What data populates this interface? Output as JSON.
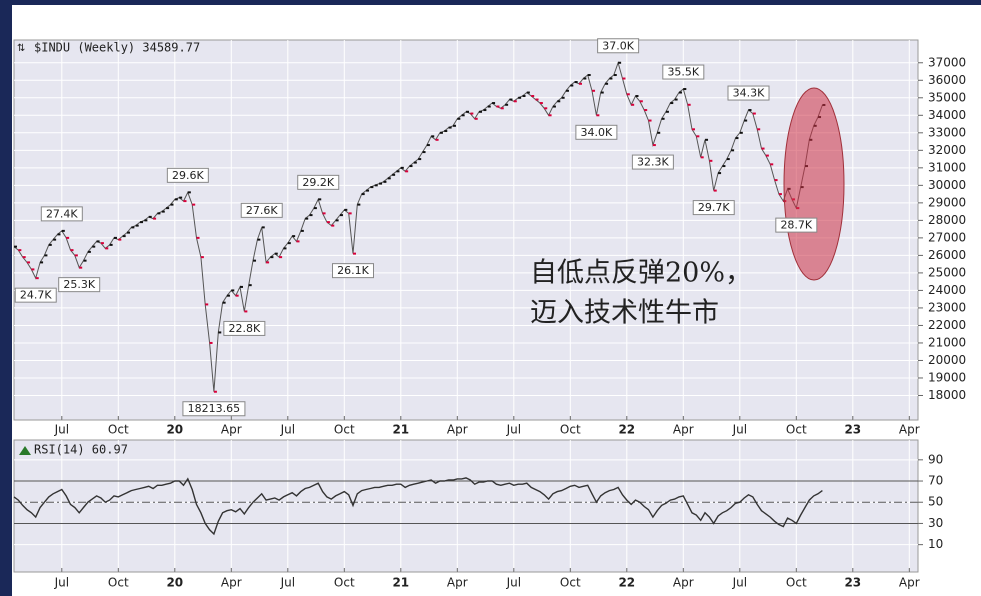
{
  "chart_data": [
    {
      "type": "line",
      "title": "$INDU (Weekly) 34589.77",
      "values": [
        26500,
        26300,
        25900,
        25600,
        25200,
        24700,
        25600,
        26000,
        26600,
        26900,
        27200,
        27400,
        27000,
        26300,
        26000,
        25300,
        25700,
        26200,
        26500,
        26800,
        26700,
        26400,
        26600,
        27000,
        26900,
        27100,
        27300,
        27600,
        27700,
        27900,
        28000,
        28200,
        28100,
        28400,
        28500,
        28700,
        28900,
        29200,
        29300,
        29100,
        29600,
        28900,
        27000,
        25900,
        23200,
        21000,
        18213.65,
        21600,
        23300,
        23700,
        24000,
        23700,
        24200,
        22800,
        24300,
        25700,
        26900,
        27600,
        25600,
        25900,
        26100,
        25900,
        26400,
        26700,
        27100,
        26800,
        27400,
        28100,
        28300,
        28700,
        29200,
        28400,
        27900,
        27700,
        28000,
        28300,
        28600,
        28400,
        26100,
        28900,
        29500,
        29700,
        29900,
        30000,
        30100,
        30200,
        30400,
        30600,
        30800,
        31000,
        30800,
        31100,
        31300,
        31500,
        31900,
        32300,
        32800,
        32600,
        33000,
        33100,
        33300,
        33400,
        33800,
        34000,
        34200,
        34100,
        33800,
        34200,
        34300,
        34500,
        34700,
        34500,
        34400,
        34600,
        34900,
        34800,
        35000,
        35100,
        35300,
        35100,
        34900,
        34700,
        34400,
        34000,
        34500,
        34800,
        35000,
        35400,
        35700,
        35900,
        35800,
        36100,
        36300,
        35400,
        34000,
        35300,
        35800,
        36100,
        36300,
        37000,
        36100,
        35200,
        34600,
        35100,
        34800,
        34300,
        33700,
        32300,
        33000,
        33800,
        34200,
        34700,
        34900,
        35300,
        35500,
        34600,
        33200,
        32800,
        31600,
        32600,
        31400,
        29700,
        30700,
        31100,
        31500,
        32000,
        32700,
        33000,
        33700,
        34300,
        34100,
        33200,
        32100,
        31700,
        31200,
        30300,
        29500,
        29100,
        29800,
        29200,
        28700,
        29900,
        31100,
        32600,
        33400,
        33900,
        34589.77
      ],
      "up_color": "#111111",
      "down_color": "#d8003a",
      "ylim": [
        16600,
        38300
      ],
      "yticks": [
        18000,
        19000,
        20000,
        21000,
        22000,
        23000,
        24000,
        25000,
        26000,
        27000,
        28000,
        29000,
        30000,
        31000,
        32000,
        33000,
        34000,
        35000,
        36000,
        37000
      ],
      "xlim": [
        0,
        208
      ],
      "xticks": [
        {
          "value": 11,
          "label": "Jul"
        },
        {
          "value": 24,
          "label": "Oct"
        },
        {
          "value": 37,
          "label": "20"
        },
        {
          "value": 50,
          "label": "Apr"
        },
        {
          "value": 63,
          "label": "Jul"
        },
        {
          "value": 76,
          "label": "Oct"
        },
        {
          "value": 89,
          "label": "21"
        },
        {
          "value": 102,
          "label": "Apr"
        },
        {
          "value": 115,
          "label": "Jul"
        },
        {
          "value": 128,
          "label": "Oct"
        },
        {
          "value": 141,
          "label": "22"
        },
        {
          "value": 154,
          "label": "Apr"
        },
        {
          "value": 167,
          "label": "Jul"
        },
        {
          "value": 180,
          "label": "Oct"
        },
        {
          "value": 193,
          "label": "23"
        },
        {
          "value": 206,
          "label": "Apr"
        }
      ],
      "grid": true,
      "point_labels": [
        {
          "x": 5,
          "value": 24700,
          "label": "24.7K"
        },
        {
          "x": 11,
          "value": 27400,
          "label": "27.4K"
        },
        {
          "x": 15,
          "value": 25300,
          "label": "25.3K"
        },
        {
          "x": 40,
          "value": 29600,
          "label": "29.6K"
        },
        {
          "x": 46,
          "value": 18213.65,
          "label": "18213.65"
        },
        {
          "x": 53,
          "value": 22800,
          "label": "22.8K"
        },
        {
          "x": 57,
          "value": 27600,
          "label": "27.6K"
        },
        {
          "x": 70,
          "value": 29200,
          "label": "29.2K"
        },
        {
          "x": 78,
          "value": 26100,
          "label": "26.1K"
        },
        {
          "x": 134,
          "value": 34000,
          "label": "34.0K"
        },
        {
          "x": 139,
          "value": 37000,
          "label": "37.0K"
        },
        {
          "x": 147,
          "value": 32300,
          "label": "32.3K"
        },
        {
          "x": 154,
          "value": 35500,
          "label": "35.5K"
        },
        {
          "x": 161,
          "value": 29700,
          "label": "29.7K"
        },
        {
          "x": 169,
          "value": 34300,
          "label": "34.3K"
        },
        {
          "x": 180,
          "value": 28700,
          "label": "28.7K"
        }
      ],
      "annotation": [
        "自低点反弹20%，",
        "迈入技术性牛市"
      ],
      "annotation_color": "#e01020"
    },
    {
      "type": "line",
      "title": "RSI(14) 60.97",
      "values": [
        55,
        52,
        47,
        43,
        40,
        36,
        45,
        50,
        55,
        58,
        60,
        62,
        56,
        48,
        45,
        40,
        45,
        50,
        53,
        56,
        54,
        50,
        52,
        56,
        55,
        57,
        59,
        61,
        62,
        63,
        64,
        65,
        63,
        66,
        66,
        67,
        68,
        70,
        70,
        66,
        72,
        62,
        48,
        40,
        30,
        24,
        20,
        32,
        40,
        42,
        43,
        41,
        44,
        39,
        45,
        50,
        54,
        58,
        52,
        53,
        54,
        52,
        55,
        57,
        59,
        56,
        60,
        63,
        64,
        66,
        68,
        60,
        55,
        53,
        56,
        58,
        60,
        57,
        47,
        58,
        61,
        62,
        63,
        64,
        64,
        65,
        66,
        66,
        67,
        67,
        64,
        66,
        67,
        68,
        69,
        70,
        71,
        68,
        70,
        70,
        71,
        71,
        72,
        72,
        73,
        71,
        67,
        69,
        69,
        70,
        70,
        67,
        66,
        67,
        68,
        66,
        67,
        67,
        68,
        64,
        62,
        60,
        57,
        53,
        58,
        60,
        61,
        63,
        65,
        66,
        64,
        65,
        66,
        58,
        50,
        56,
        59,
        61,
        62,
        64,
        57,
        52,
        48,
        52,
        50,
        46,
        43,
        36,
        42,
        47,
        49,
        52,
        53,
        55,
        56,
        48,
        40,
        38,
        33,
        40,
        36,
        30,
        37,
        40,
        42,
        45,
        49,
        50,
        54,
        57,
        55,
        48,
        42,
        39,
        36,
        32,
        29,
        27,
        35,
        33,
        30,
        38,
        45,
        52,
        56,
        58,
        60.97
      ],
      "color": "#333333",
      "ylim": [
        -15.8,
        108.7
      ],
      "yticks": [
        10,
        30,
        50,
        70,
        90
      ],
      "levels": [
        70,
        50,
        30
      ],
      "xlim": [
        0,
        208
      ],
      "xticks": [
        {
          "value": 11,
          "label": "Jul"
        },
        {
          "value": 24,
          "label": "Oct"
        },
        {
          "value": 37,
          "label": "20"
        },
        {
          "value": 50,
          "label": "Apr"
        },
        {
          "value": 63,
          "label": "Jul"
        },
        {
          "value": 76,
          "label": "Oct"
        },
        {
          "value": 89,
          "label": "21"
        },
        {
          "value": 102,
          "label": "Apr"
        },
        {
          "value": 115,
          "label": "Jul"
        },
        {
          "value": 128,
          "label": "Oct"
        },
        {
          "value": 141,
          "label": "22"
        },
        {
          "value": 154,
          "label": "Apr"
        },
        {
          "value": 167,
          "label": "Jul"
        },
        {
          "value": 180,
          "label": "Oct"
        },
        {
          "value": 193,
          "label": "23"
        },
        {
          "value": 206,
          "label": "Apr"
        }
      ],
      "grid": true
    }
  ]
}
